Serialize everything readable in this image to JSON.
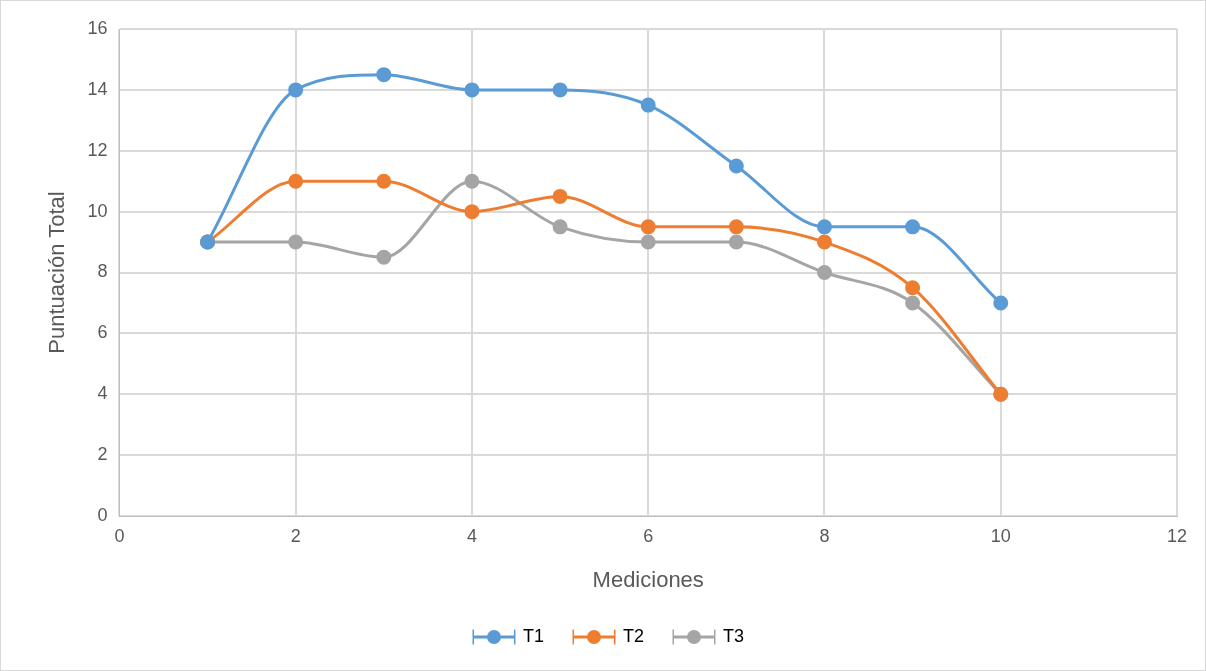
{
  "chart_data": {
    "type": "line",
    "xlabel": "Mediciones",
    "ylabel": "Puntuación Total",
    "x": [
      1,
      2,
      3,
      4,
      5,
      6,
      7,
      8,
      9,
      10
    ],
    "series": [
      {
        "name": "T1",
        "color": "#5b9bd5",
        "values": [
          9,
          14,
          14.5,
          14,
          14,
          13.5,
          11.5,
          9.5,
          9.5,
          7
        ]
      },
      {
        "name": "T2",
        "color": "#ed7d31",
        "values": [
          9,
          11,
          11,
          10,
          10.5,
          9.5,
          9.5,
          9,
          7.5,
          4
        ]
      },
      {
        "name": "T3",
        "color": "#a5a5a5",
        "values": [
          9,
          9,
          8.5,
          11,
          9.5,
          9,
          9,
          8,
          7,
          4
        ]
      }
    ],
    "xlim": [
      0,
      12
    ],
    "xticks": [
      0,
      2,
      4,
      6,
      8,
      10,
      12
    ],
    "ylim": [
      0,
      16
    ],
    "yticks": [
      0,
      2,
      4,
      6,
      8,
      10,
      12,
      14,
      16
    ],
    "grid": true,
    "legend": "bottom",
    "marker": "circle",
    "line_style": "solid"
  }
}
